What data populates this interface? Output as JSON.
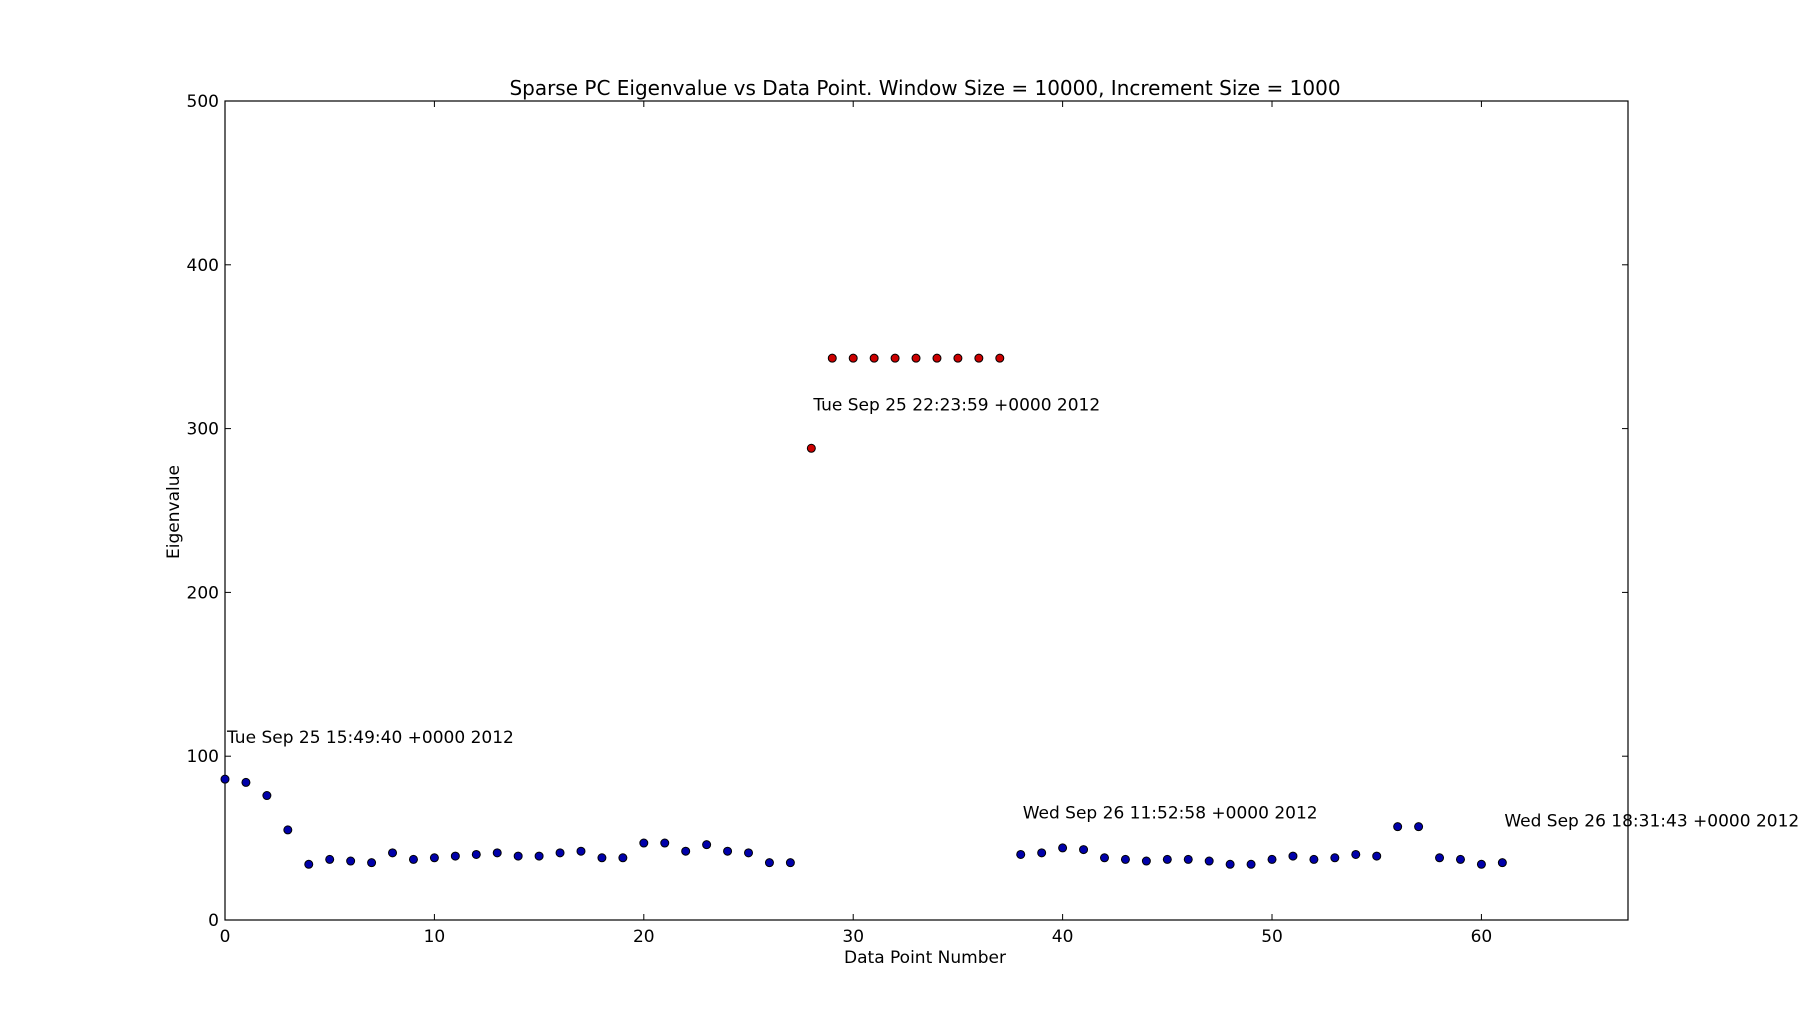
{
  "chart_data": {
    "type": "scatter",
    "title": "Sparse PC Eigenvalue vs Data Point. Window Size = 10000, Increment Size = 1000",
    "xlabel": "Data Point Number",
    "ylabel": "Eigenvalue",
    "xlim": [
      0,
      67
    ],
    "ylim": [
      0,
      500
    ],
    "xticks": [
      0,
      10,
      20,
      30,
      40,
      50,
      60
    ],
    "yticks": [
      0,
      100,
      200,
      300,
      400,
      500
    ],
    "grid": false,
    "series": [
      {
        "color": "#0000aa",
        "x": [
          0,
          1,
          2,
          3,
          4,
          5,
          6,
          7,
          8,
          9,
          10,
          11,
          12,
          13,
          14,
          15,
          16,
          17,
          18,
          19,
          20,
          21,
          22,
          23,
          24,
          25,
          26,
          27,
          38,
          39,
          40,
          41,
          42,
          43,
          44,
          45,
          46,
          47,
          48,
          49,
          50,
          51,
          52,
          53,
          54,
          55,
          56,
          57,
          58,
          59,
          60,
          61
        ],
        "y": [
          86,
          84,
          76,
          55,
          34,
          37,
          36,
          35,
          41,
          37,
          38,
          39,
          40,
          41,
          39,
          39,
          41,
          42,
          38,
          38,
          47,
          47,
          42,
          46,
          42,
          41,
          35,
          35,
          40,
          41,
          44,
          43,
          38,
          37,
          36,
          37,
          37,
          36,
          34,
          34,
          37,
          39,
          37,
          38,
          40,
          39,
          57,
          57,
          38,
          37,
          34,
          35
        ]
      },
      {
        "color": "#cc0000",
        "x": [
          28,
          29,
          30,
          31,
          32,
          33,
          34,
          35,
          36,
          37
        ],
        "y": [
          288,
          343,
          343,
          343,
          343,
          343,
          343,
          343,
          343,
          343
        ]
      }
    ],
    "annotations": [
      {
        "text": "Tue Sep 25 15:49:40 +0000 2012",
        "x": 0,
        "y": 108
      },
      {
        "text": "Tue Sep 25 22:23:59 +0000 2012",
        "x": 28,
        "y": 311
      },
      {
        "text": "Wed Sep 26 11:52:58 +0000 2012",
        "x": 38,
        "y": 62
      },
      {
        "text": "Wed Sep 26 18:31:43 +0000 2012",
        "x": 61,
        "y": 57
      }
    ]
  }
}
